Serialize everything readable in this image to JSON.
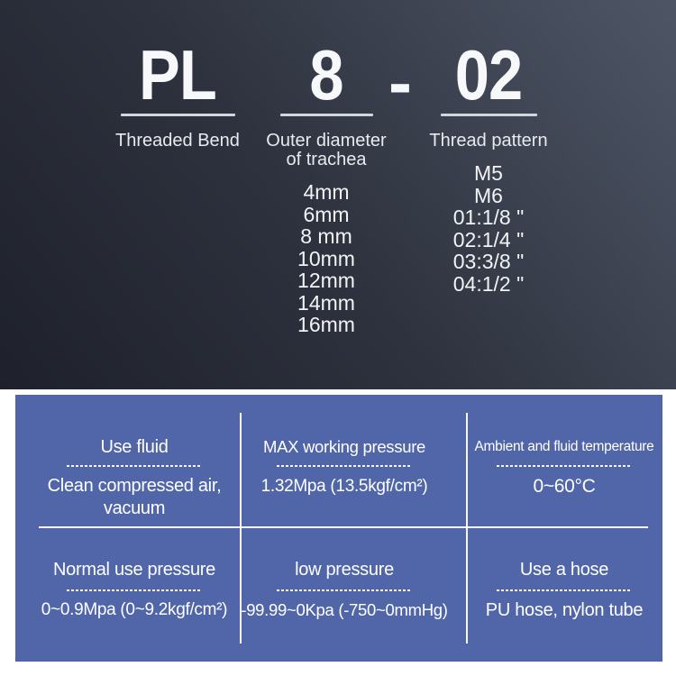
{
  "model_breakdown": {
    "prefix": {
      "code": "PL",
      "label": "Threaded Bend"
    },
    "separator": "-",
    "size": {
      "code": "8",
      "label_line1": "Outer diameter",
      "label_line2": "of trachea",
      "options": [
        "4mm",
        "6mm",
        "8 mm",
        "10mm",
        "12mm",
        "14mm",
        "16mm"
      ]
    },
    "thread": {
      "code": "02",
      "label": "Thread pattern",
      "options": [
        "M5",
        "M6",
        "01:1/8 \"",
        "02:1/4 \"",
        "03:3/8 \"",
        "04:1/2 \""
      ]
    }
  },
  "spec_table": {
    "use_fluid": {
      "header": "Use fluid",
      "value_line1": "Clean compressed air,",
      "value_line2": "vacuum"
    },
    "max_pressure": {
      "header": "MAX working pressure",
      "value": "1.32Mpa (13.5kgf/cm²)"
    },
    "temperature": {
      "header": "Ambient and fluid temperature",
      "value": "0~60°C"
    },
    "normal_pressure": {
      "header": "Normal use pressure",
      "value": "0~0.9Mpa (0~9.2kgf/cm²)"
    },
    "low_pressure": {
      "header": "low pressure",
      "value": "-99.99~0Kpa (-750~0mmHg)"
    },
    "hose": {
      "header": "Use a hose",
      "value": "PU hose, nylon tube"
    }
  },
  "colors": {
    "table_bg": "#5066a9",
    "panel_dark": "#1e212b",
    "panel_light": "#4e5666",
    "text": "#ffffff"
  }
}
